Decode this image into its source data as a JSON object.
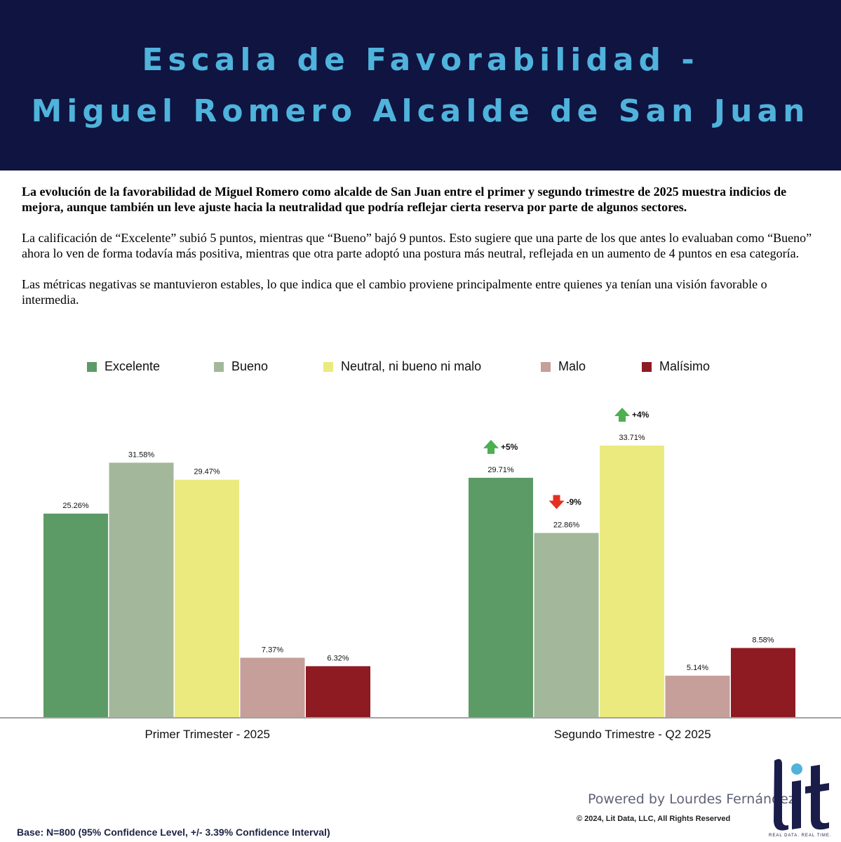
{
  "header": {
    "title_line1": "Escala de Favorabilidad -",
    "title_line2": "Miguel Romero Alcalde de San Juan"
  },
  "intro": {
    "p1": "La evolución de la favorabilidad de Miguel Romero como alcalde de San Juan entre el primer y segundo trimestre de 2025 muestra indicios de mejora, aunque también un leve ajuste hacia la neutralidad que podría reflejar cierta reserva por parte de algunos sectores.",
    "p2": "La calificación de “Excelente” subió 5 puntos, mientras que “Bueno” bajó 9 puntos. Esto sugiere que una parte de los que antes lo evaluaban como “Bueno” ahora lo ven de forma todavía más positiva, mientras que otra parte adoptó una postura más neutral, reflejada en un aumento de 4 puntos en esa categoría.",
    "p3": "Las métricas negativas se mantuvieron estables, lo que indica que el cambio proviene principalmente entre quienes ya tenían una visión favorable o intermedia."
  },
  "chart_data": {
    "type": "bar",
    "categories": [
      "Primer Trimester - 2025",
      "Segundo Trimestre - Q2 2025"
    ],
    "series": [
      {
        "name": "Excelente",
        "color": "#5c9a66",
        "values": [
          25.26,
          29.71
        ],
        "labels": [
          "25.26%",
          "29.71%"
        ]
      },
      {
        "name": "Bueno",
        "color": "#a3b89b",
        "values": [
          31.58,
          22.86
        ],
        "labels": [
          "31.58%",
          "22.86%"
        ]
      },
      {
        "name": "Neutral, ni bueno ni malo",
        "color": "#ebea7f",
        "values": [
          29.47,
          33.71
        ],
        "labels": [
          "29.47%",
          "33.71%"
        ]
      },
      {
        "name": "Malo",
        "color": "#c69e9a",
        "values": [
          7.37,
          5.14
        ],
        "labels": [
          "7.37%",
          "5.14%"
        ]
      },
      {
        "name": "Malísimo",
        "color": "#8e1a22",
        "values": [
          6.32,
          8.58
        ],
        "labels": [
          "6.32%",
          "8.58%"
        ]
      }
    ],
    "ylim": [
      0,
      33.71
    ],
    "legend_position": "top",
    "grid": false,
    "annotations": [
      {
        "series": "Excelente",
        "category": "Segundo Trimestre - Q2 2025",
        "text": "+5%",
        "direction": "up",
        "color": "#4caf50"
      },
      {
        "series": "Bueno",
        "category": "Segundo Trimestre - Q2 2025",
        "text": "-9%",
        "direction": "down",
        "color": "#e53020"
      },
      {
        "series": "Neutral, ni bueno ni malo",
        "category": "Segundo Trimestre - Q2 2025",
        "text": "+4%",
        "direction": "up",
        "color": "#4caf50"
      }
    ]
  },
  "footer": {
    "powered_by": "Powered by Lourdes Fernández",
    "copyright": "© 2024, Lit Data, LLC, All Rights Reserved",
    "base": "Base: N=800 (95% Confidence Level, +/- 3.39% Confidence Interval)",
    "logo_text": "lit",
    "tagline": "REAL DATA. REAL TIME.",
    "logo_color": "#1a1c4a",
    "logo_dot_color": "#4fb3dc"
  }
}
